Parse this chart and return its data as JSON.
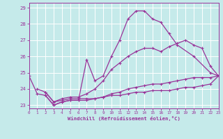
{
  "xlabel": "Windchill (Refroidissement éolien,°C)",
  "xlim": [
    0,
    23
  ],
  "ylim": [
    22.8,
    29.3
  ],
  "yticks": [
    23,
    24,
    25,
    26,
    27,
    28,
    29
  ],
  "xticks": [
    0,
    1,
    2,
    3,
    4,
    5,
    6,
    7,
    8,
    9,
    10,
    11,
    12,
    13,
    14,
    15,
    16,
    17,
    18,
    19,
    20,
    21,
    22,
    23
  ],
  "background_color": "#c5eaea",
  "line_color": "#993399",
  "grid_color": "#ffffff",
  "line1_x": [
    0,
    1,
    2,
    3,
    4,
    5,
    6,
    7,
    8,
    9,
    10,
    11,
    12,
    13,
    14,
    15,
    16,
    17,
    18,
    20,
    22,
    23
  ],
  "line1_y": [
    24.8,
    23.7,
    23.6,
    23.0,
    23.2,
    23.3,
    23.3,
    25.8,
    24.5,
    24.8,
    26.0,
    27.0,
    28.3,
    28.8,
    28.8,
    28.3,
    28.1,
    27.4,
    26.7,
    26.0,
    25.0,
    24.8
  ],
  "line2_x": [
    1,
    2,
    3,
    4,
    5,
    6,
    7,
    8,
    9,
    10,
    11,
    12,
    13,
    14,
    15,
    16,
    17,
    18,
    19,
    20,
    21,
    22,
    23
  ],
  "line2_y": [
    24.0,
    23.8,
    23.2,
    23.4,
    23.5,
    23.5,
    23.7,
    24.0,
    24.5,
    25.2,
    25.6,
    26.0,
    26.3,
    26.5,
    26.5,
    26.3,
    26.6,
    26.8,
    27.0,
    26.7,
    26.5,
    25.4,
    24.8
  ],
  "line3_x": [
    2,
    3,
    4,
    5,
    6,
    7,
    8,
    9,
    10,
    11,
    12,
    13,
    14,
    15,
    16,
    17,
    18,
    19,
    20,
    21,
    22,
    23
  ],
  "line3_y": [
    23.6,
    23.0,
    23.2,
    23.3,
    23.3,
    23.3,
    23.4,
    23.5,
    23.7,
    23.8,
    24.0,
    24.1,
    24.2,
    24.3,
    24.3,
    24.4,
    24.5,
    24.6,
    24.7,
    24.7,
    24.7,
    24.8
  ],
  "line4_x": [
    2,
    3,
    4,
    5,
    6,
    7,
    8,
    9,
    10,
    11,
    12,
    13,
    14,
    15,
    16,
    17,
    18,
    19,
    20,
    21,
    22,
    23
  ],
  "line4_y": [
    23.8,
    23.2,
    23.3,
    23.4,
    23.4,
    23.4,
    23.4,
    23.5,
    23.6,
    23.6,
    23.7,
    23.8,
    23.8,
    23.9,
    23.9,
    23.9,
    24.0,
    24.1,
    24.1,
    24.2,
    24.3,
    24.8
  ]
}
